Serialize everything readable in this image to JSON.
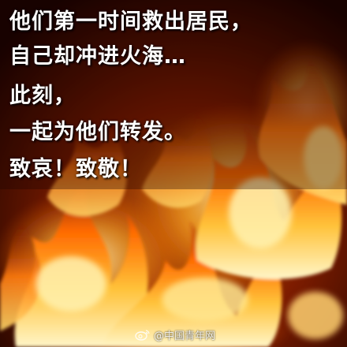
{
  "poster": {
    "lines": [
      "他们第一时间救出居民，",
      "自己却冲进火海…",
      "此刻，",
      "一起为他们转发。",
      "致哀！致敬！"
    ]
  },
  "watermark": {
    "icon": "weibo-icon",
    "text": "@中国青年网"
  },
  "colors": {
    "text": "#ffffff",
    "flame_core": "#fff2b0",
    "flame_mid": "#ff9a1a",
    "flame_outer": "#c42a00",
    "background": "#1a0400"
  }
}
